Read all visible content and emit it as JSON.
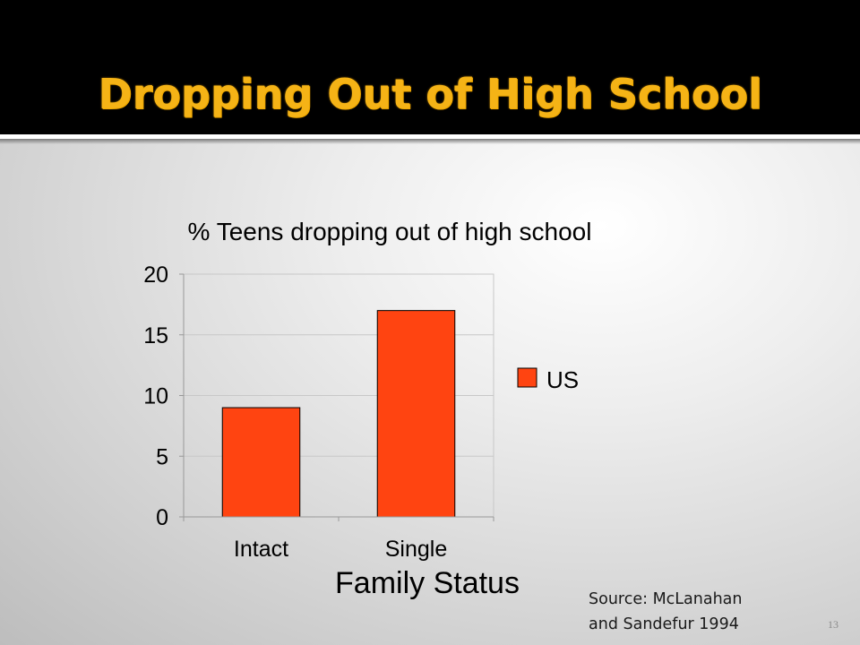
{
  "slide": {
    "title": "Dropping Out of High School",
    "source_line1": "Source: McLanahan",
    "source_line2": "and Sandefur 1994",
    "page_number": "13"
  },
  "colors": {
    "title": "#f5b316",
    "bar": "#ff4411",
    "title_bar": "#000000"
  },
  "chart_data": {
    "type": "bar",
    "title": "% Teens dropping out of high school",
    "xlabel": "Family Status",
    "ylabel": "",
    "categories": [
      "Intact",
      "Single"
    ],
    "series": [
      {
        "name": "US",
        "values": [
          9,
          17
        ]
      }
    ],
    "ylim": [
      0,
      20
    ],
    "yticks": [
      0,
      5,
      10,
      15,
      20
    ],
    "grid": true,
    "legend": "right"
  }
}
